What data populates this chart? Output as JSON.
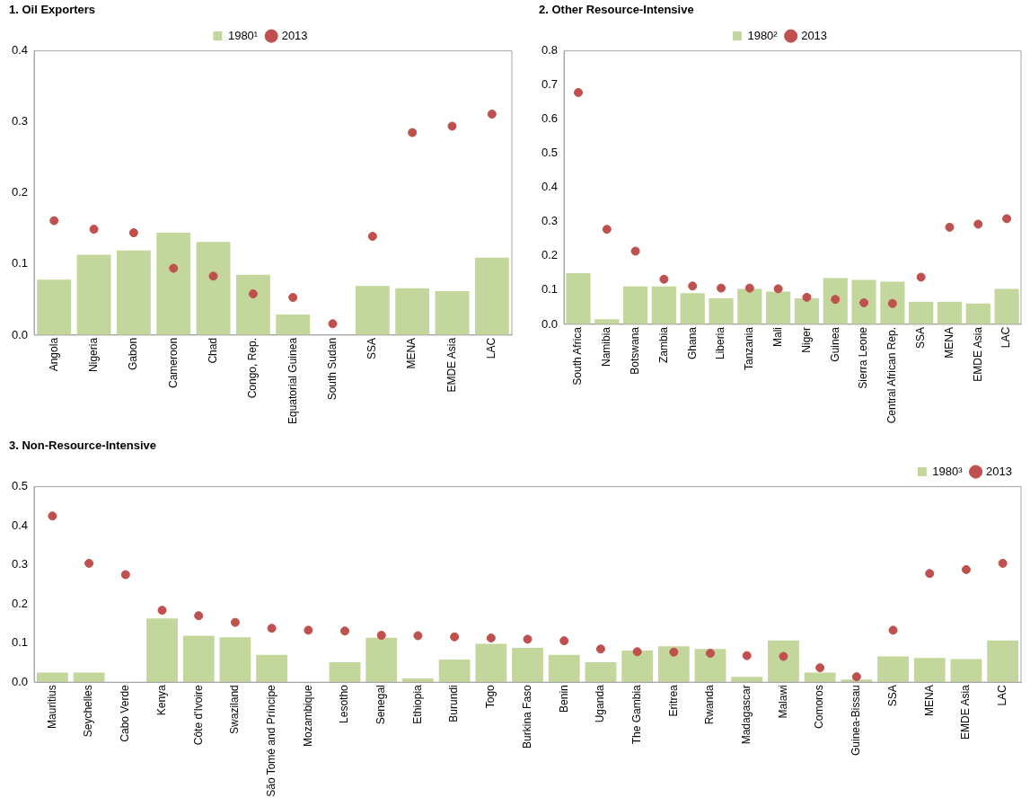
{
  "chart_data": [
    {
      "type": "bar",
      "title": "1. Oil Exporters",
      "categories": [
        "Angola",
        "Nigeria",
        "Gabon",
        "Cameroon",
        "Chad",
        "Congo, Rep.",
        "Equatorial Guinea",
        "South Sudan",
        "SSA",
        "MENA",
        "EMDE Asia",
        "LAC"
      ],
      "series": [
        {
          "name": "1980¹",
          "color": "#c3d69b",
          "values": [
            0.078,
            0.113,
            0.119,
            0.144,
            0.131,
            0.085,
            0.029,
            null,
            0.069,
            0.066,
            0.062,
            0.109
          ]
        },
        {
          "name": "2013",
          "type": "scatter",
          "color": "#c0504d",
          "values": [
            0.161,
            0.149,
            0.144,
            0.094,
            0.083,
            0.058,
            0.053,
            0.016,
            0.139,
            0.285,
            0.294,
            0.311
          ]
        }
      ],
      "ylim": [
        0,
        0.4
      ],
      "yticks": [
        {
          "value": 0,
          "label": "0.0"
        },
        {
          "value": 0.1,
          "label": "0.1"
        },
        {
          "value": 0.2,
          "label": "0.2"
        },
        {
          "value": 0.3,
          "label": "0.3"
        },
        {
          "value": 0.4,
          "label": "0.4"
        }
      ],
      "grid": false,
      "legend": "top",
      "marker": "circle"
    },
    {
      "type": "bar",
      "title": "2. Other Resource-Intensive",
      "categories": [
        "South Africa",
        "Namibia",
        "Botswana",
        "Zambia",
        "Ghana",
        "Liberia",
        "Tanzania",
        "Mali",
        "Niger",
        "Guinea",
        "Sierra Leone",
        "Central African Rep.",
        "SSA",
        "MENA",
        "EMDE Asia",
        "LAC"
      ],
      "series": [
        {
          "name": "1980²",
          "color": "#c3d69b",
          "values": [
            0.15,
            0.015,
            0.111,
            0.111,
            0.091,
            0.076,
            0.104,
            0.096,
            0.076,
            0.135,
            0.13,
            0.125,
            0.066,
            0.066,
            0.061,
            0.104
          ]
        },
        {
          "name": "2013",
          "type": "scatter",
          "color": "#c0504d",
          "values": [
            0.678,
            0.278,
            0.214,
            0.132,
            0.112,
            0.106,
            0.106,
            0.104,
            0.079,
            0.073,
            0.063,
            0.061,
            0.138,
            0.284,
            0.293,
            0.309
          ]
        }
      ],
      "ylim": [
        0,
        0.8
      ],
      "yticks": [
        {
          "value": 0,
          "label": "0.0"
        },
        {
          "value": 0.1,
          "label": "0.1"
        },
        {
          "value": 0.2,
          "label": "0.2"
        },
        {
          "value": 0.3,
          "label": "0.3"
        },
        {
          "value": 0.4,
          "label": "0.4"
        },
        {
          "value": 0.5,
          "label": "0.5"
        },
        {
          "value": 0.6,
          "label": "0.6"
        },
        {
          "value": 0.7,
          "label": "0.7"
        },
        {
          "value": 0.8,
          "label": "0.8"
        }
      ],
      "grid": false,
      "legend": "top",
      "marker": "circle"
    },
    {
      "type": "bar",
      "title": "3. Non-Resource-Intensive",
      "categories": [
        "Mauritius",
        "Seychelles",
        "Cabo Verde",
        "Kenya",
        "Côte d'Ivoire",
        "Swaziland",
        "São Tomé and Príncipe",
        "Mozambique",
        "Lesotho",
        "Senegal",
        "Ethiopia",
        "Burundi",
        "Togo",
        "Burkina Faso",
        "Benin",
        "Uganda",
        "The Gambia",
        "Eritrea",
        "Rwanda",
        "Madagascar",
        "Malawi",
        "Comoros",
        "Guinea-Bissau",
        "SSA",
        "MENA",
        "EMDE Asia",
        "LAC"
      ],
      "series": [
        {
          "name": "1980³",
          "color": "#c3d69b",
          "values": [
            0.025,
            0.025,
            null,
            0.163,
            0.119,
            0.115,
            0.07,
            null,
            0.051,
            0.114,
            0.01,
            0.058,
            0.098,
            0.088,
            0.07,
            0.051,
            0.081,
            0.092,
            0.085,
            0.014,
            0.107,
            0.025,
            0.007,
            0.066,
            0.062,
            0.059,
            0.107
          ]
        },
        {
          "name": "2013",
          "type": "scatter",
          "color": "#c0504d",
          "values": [
            0.425,
            0.304,
            0.275,
            0.184,
            0.17,
            0.153,
            0.138,
            0.133,
            0.131,
            0.12,
            0.119,
            0.116,
            0.113,
            0.11,
            0.106,
            0.085,
            0.078,
            0.077,
            0.074,
            0.068,
            0.066,
            0.037,
            0.014,
            0.133,
            0.278,
            0.288,
            0.304
          ]
        }
      ],
      "ylim": [
        0,
        0.5
      ],
      "yticks": [
        {
          "value": 0,
          "label": "0.0"
        },
        {
          "value": 0.1,
          "label": "0.1"
        },
        {
          "value": 0.2,
          "label": "0.2"
        },
        {
          "value": 0.3,
          "label": "0.3"
        },
        {
          "value": 0.4,
          "label": "0.4"
        },
        {
          "value": 0.5,
          "label": "0.5"
        }
      ],
      "grid": false,
      "legend": "top right",
      "marker": "circle"
    }
  ]
}
